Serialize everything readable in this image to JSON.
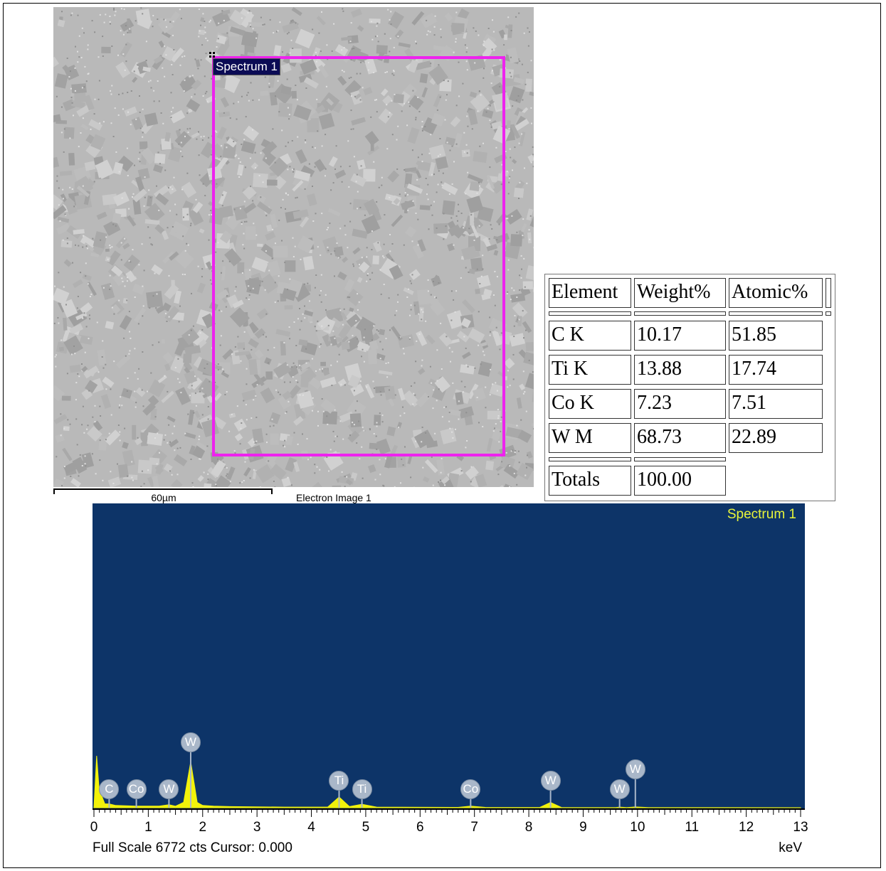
{
  "image": {
    "roi_label": "Spectrum 1",
    "scale_label": "60µm",
    "caption": "Electron Image 1"
  },
  "table": {
    "headers": [
      "Element",
      "Weight%",
      "Atomic%"
    ],
    "rows": [
      {
        "element": "C K",
        "weight": "10.17",
        "atomic": "51.85"
      },
      {
        "element": "Ti K",
        "weight": "13.88",
        "atomic": "17.74"
      },
      {
        "element": "Co K",
        "weight": "7.23",
        "atomic": "7.51"
      },
      {
        "element": "W M",
        "weight": "68.73",
        "atomic": "22.89"
      }
    ],
    "totals_label": "Totals",
    "totals_value": "100.00"
  },
  "spectrum": {
    "title": "Spectrum 1",
    "footer": "Full Scale 6772 cts Cursor: 0.000",
    "unit": "keV",
    "colors": {
      "background": "#0d3468",
      "trace": "#f2f20a",
      "title": "#e8f53a",
      "marker": "#a9b7c9"
    },
    "markers": [
      {
        "label": "C",
        "kev": 0.28,
        "row": "low"
      },
      {
        "label": "Co",
        "kev": 0.78,
        "row": "low"
      },
      {
        "label": "W",
        "kev": 1.38,
        "row": "low"
      },
      {
        "label": "W",
        "kev": 1.78,
        "row": "high"
      },
      {
        "label": "Ti",
        "kev": 4.51,
        "row": "mid"
      },
      {
        "label": "Ti",
        "kev": 4.93,
        "row": "low"
      },
      {
        "label": "Co",
        "kev": 6.93,
        "row": "low"
      },
      {
        "label": "W",
        "kev": 8.4,
        "row": "mid"
      },
      {
        "label": "W",
        "kev": 9.67,
        "row": "low"
      },
      {
        "label": "W",
        "kev": 9.96,
        "row": "mid2"
      }
    ]
  },
  "chart_data": {
    "type": "area",
    "title": "Spectrum 1",
    "xlabel": "keV",
    "ylabel": "",
    "xlim": [
      0,
      13
    ],
    "xticks": [
      "0",
      "1",
      "2",
      "3",
      "4",
      "5",
      "6",
      "7",
      "8",
      "9",
      "10",
      "11",
      "12",
      "13"
    ],
    "series": [
      {
        "x": [
          0.0,
          0.05,
          0.1,
          0.15,
          0.2,
          0.28,
          0.4,
          0.78,
          1.2,
          1.38,
          1.5,
          1.65,
          1.78,
          1.9,
          2.0,
          2.2,
          2.5,
          3.5,
          4.3,
          4.51,
          4.7,
          4.93,
          5.2,
          6.7,
          6.93,
          7.2,
          8.2,
          8.4,
          8.6,
          9.6,
          9.67,
          9.8,
          9.96,
          10.2,
          13.0
        ],
        "y": [
          0,
          6772,
          2000,
          1400,
          500,
          500,
          300,
          200,
          200,
          400,
          200,
          700,
          6000,
          700,
          300,
          200,
          150,
          80,
          80,
          1400,
          150,
          450,
          80,
          50,
          200,
          50,
          40,
          700,
          40,
          30,
          80,
          30,
          100,
          30,
          10
        ]
      }
    ]
  }
}
